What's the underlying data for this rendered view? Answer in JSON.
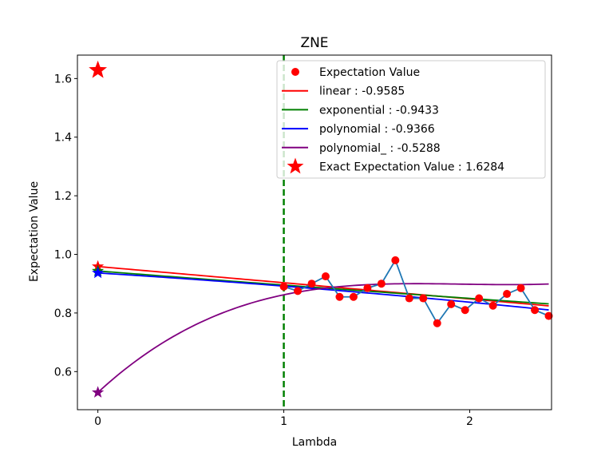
{
  "chart_data": {
    "type": "scatter",
    "title": "ZNE",
    "xlabel": "Lambda",
    "ylabel": "Expectation Value",
    "xlim": [
      -0.11,
      2.44
    ],
    "ylim": [
      0.47,
      1.68
    ],
    "x_ticks": [
      0,
      1,
      2
    ],
    "x_tick_labels": [
      "0",
      "1",
      "2"
    ],
    "y_ticks": [
      0.6,
      0.8,
      1.0,
      1.2,
      1.4,
      1.6
    ],
    "y_tick_labels": [
      "0.6",
      "0.8",
      "1.0",
      "1.2",
      "1.4",
      "1.6"
    ],
    "grid": false,
    "legend_position": "top-right",
    "vline": {
      "x": 1.0,
      "color": "#008000",
      "style": "dashed"
    },
    "measured": {
      "name": "Expectation Value",
      "color": "#ff0000",
      "line_color": "#1f77b4",
      "x": [
        1.0,
        1.075,
        1.15,
        1.225,
        1.3,
        1.375,
        1.45,
        1.525,
        1.6,
        1.675,
        1.75,
        1.825,
        1.9,
        1.975,
        2.05,
        2.125,
        2.2,
        2.275,
        2.35,
        2.425
      ],
      "y": [
        0.89,
        0.875,
        0.9,
        0.925,
        0.855,
        0.855,
        0.885,
        0.9,
        0.98,
        0.85,
        0.85,
        0.765,
        0.83,
        0.81,
        0.85,
        0.825,
        0.865,
        0.885,
        0.81,
        0.79
      ]
    },
    "fits": [
      {
        "name": "linear : -0.9585",
        "color": "#ff0000",
        "type": "poly",
        "coeffs": [
          0.9585,
          -0.0553
        ],
        "zero_value": 0.9585
      },
      {
        "name": "exponential : -0.9433",
        "color": "#008000",
        "type": "exp",
        "a": 0.9433,
        "b": -0.0522,
        "zero_value": 0.9433
      },
      {
        "name": "polynomial : -0.9366",
        "color": "#0000ff",
        "type": "poly",
        "coeffs": [
          0.9366,
          -0.0399,
          -0.005
        ],
        "zero_value": 0.9366
      },
      {
        "name": "polynomial_ : -0.5288",
        "color": "#800080",
        "type": "poly",
        "coeffs": [
          0.5288,
          0.5852,
          -0.3035,
          0.0516
        ],
        "zero_value": 0.5288
      }
    ],
    "exact": {
      "name": "Exact Expectation Value : 1.6284",
      "color": "#ff0000",
      "x": 0,
      "y": 1.6284
    }
  }
}
